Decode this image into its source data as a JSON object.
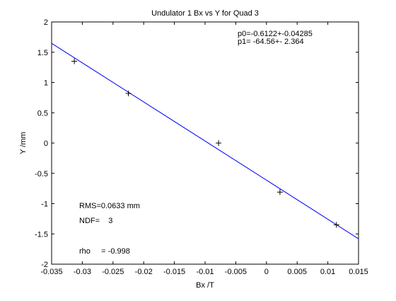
{
  "chart_data": {
    "type": "scatter",
    "title": "Undulator 1 Bx vs Y for Quad 3",
    "xlabel": "Bx /T",
    "ylabel": "Y /mm",
    "xlim": [
      -0.035,
      0.015
    ],
    "ylim": [
      -2,
      2
    ],
    "grid": false,
    "x_ticks": [
      -0.035,
      -0.03,
      -0.025,
      -0.02,
      -0.015,
      -0.01,
      -0.005,
      0,
      0.005,
      0.01,
      0.015
    ],
    "x_tick_labels": [
      "-0.035",
      "-0.03",
      "-0.025",
      "-0.02",
      "-0.015",
      "-0.01",
      "-0.005",
      "0",
      "0.005",
      "0.01",
      "0.015"
    ],
    "y_ticks": [
      -2,
      -1.5,
      -1,
      -0.5,
      0,
      0.5,
      1,
      1.5,
      2
    ],
    "y_tick_labels": [
      "-2",
      "-1.5",
      "-1",
      "-0.5",
      "0",
      "0.5",
      "1",
      "1.5",
      "2"
    ],
    "points": {
      "x": [
        -0.0313,
        -0.0225,
        -0.0078,
        0.0022,
        0.0114
      ],
      "y": [
        1.35,
        0.82,
        0.0,
        -0.81,
        -1.35
      ],
      "marker": "+",
      "color": "#000000"
    },
    "fit_line": {
      "x": [
        -0.035,
        0.015
      ],
      "y": [
        1.6474,
        -1.5806
      ],
      "color": "#0000ff"
    },
    "annotations": [
      {
        "text": "p0=-0.6122+-0.04285",
        "position": "top-right"
      },
      {
        "text": "p1= -64.56+- 2.364",
        "position": "top-right"
      },
      {
        "text": "RMS=0.0633 mm",
        "position": "bottom-left"
      },
      {
        "text": "NDF=    3",
        "position": "bottom-left"
      },
      {
        "text": "rho     = -0.998",
        "position": "bottom-left"
      }
    ]
  }
}
